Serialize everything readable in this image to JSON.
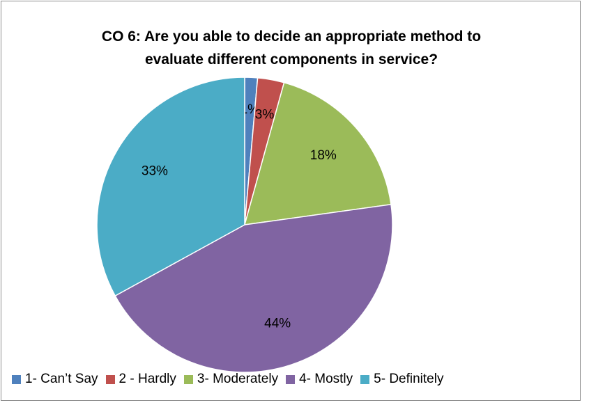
{
  "chart_data": {
    "type": "pie",
    "title_lines": [
      "CO 6: Are you able to decide an appropriate method to",
      "evaluate different components in service?"
    ],
    "categories": [
      "1- Can’t Say",
      "2 - Hardly",
      "3- Moderately",
      "4- Mostly",
      "5- Definitely"
    ],
    "values": [
      1.4,
      2.9,
      18.5,
      44.2,
      33.0
    ],
    "data_labels": [
      "1%",
      "3%",
      "18%",
      "44%",
      "33%"
    ],
    "colors": [
      "#4f81bd",
      "#c0504d",
      "#9bbb59",
      "#8064a2",
      "#4bacc6"
    ],
    "legend_position": "bottom",
    "start_angle": "12 o'clock",
    "direction": "clockwise"
  }
}
